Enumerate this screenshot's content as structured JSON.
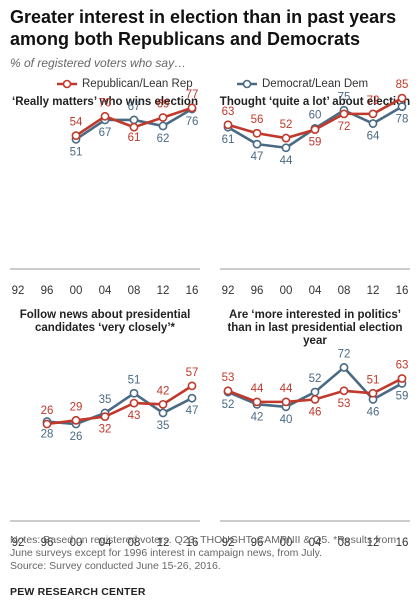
{
  "title": "Greater interest in election than in past years among both Republicans and Democrats",
  "subtitle": "% of registered voters who say…",
  "legend": {
    "rep": "Republican/Lean Rep",
    "dem": "Democrat/Lean Dem"
  },
  "colors": {
    "rep": "#c0392b",
    "dem": "#4a6a84",
    "axis": "#999999"
  },
  "chart_data": [
    {
      "type": "line",
      "title": "‘Really matters’ who wins election",
      "x": [
        "92",
        "96",
        "00",
        "04",
        "08",
        "12",
        "16"
      ],
      "series": [
        {
          "name": "Republican/Lean Rep",
          "values": [
            null,
            null,
            54,
            70,
            61,
            69,
            77
          ]
        },
        {
          "name": "Democrat/Lean Dem",
          "values": [
            null,
            null,
            51,
            67,
            67,
            62,
            76
          ]
        }
      ]
    },
    {
      "type": "line",
      "title": "Thought ‘quite a lot’ about election",
      "x": [
        "92",
        "96",
        "00",
        "04",
        "08",
        "12",
        "16"
      ],
      "series": [
        {
          "name": "Republican/Lean Rep",
          "values": [
            63,
            56,
            52,
            59,
            72,
            72,
            85
          ]
        },
        {
          "name": "Democrat/Lean Dem",
          "values": [
            61,
            47,
            44,
            60,
            75,
            64,
            78
          ]
        }
      ]
    },
    {
      "type": "line",
      "title": "Follow news about presidential candidates ‘very closely’*",
      "x": [
        "92",
        "96",
        "00",
        "04",
        "08",
        "12",
        "16"
      ],
      "series": [
        {
          "name": "Republican/Lean Rep",
          "values": [
            null,
            26,
            29,
            32,
            43,
            42,
            57
          ]
        },
        {
          "name": "Democrat/Lean Dem",
          "values": [
            null,
            28,
            26,
            35,
            51,
            35,
            47
          ]
        }
      ]
    },
    {
      "type": "line",
      "title": "Are ‘more interested in politics’ than in last presidential election year",
      "x": [
        "92",
        "96",
        "00",
        "04",
        "08",
        "12",
        "16"
      ],
      "series": [
        {
          "name": "Republican/Lean Rep",
          "values": [
            53,
            44,
            44,
            46,
            53,
            51,
            63
          ]
        },
        {
          "name": "Democrat/Lean Dem",
          "values": [
            52,
            42,
            40,
            52,
            72,
            46,
            59
          ]
        }
      ]
    }
  ],
  "notes": "Notes: Based on registered voters. Q23, THOUGHT, CAMPNII & Q5. *Results from June surveys except for 1996 interest in campaign news, from July.",
  "notes2": "Source: Survey conducted June 15-26, 2016.",
  "source": "PEW RESEARCH CENTER"
}
